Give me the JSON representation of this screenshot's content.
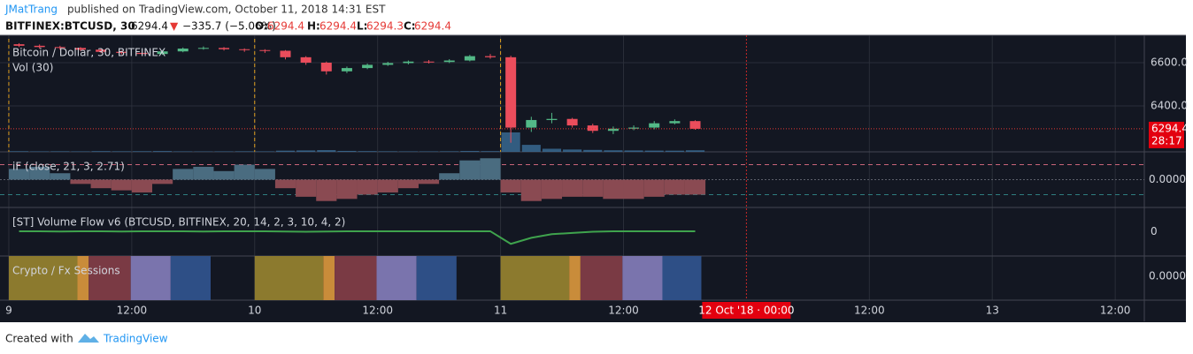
{
  "header": {
    "author": "JMatTrang",
    "published": "published on TradingView.com, October 11, 2018 14:31 EST",
    "symbol": "BITFINEX:BTCUSD, 30",
    "price": "6294.4",
    "arrow": "▼",
    "change": "−335.7 (−5.06%)",
    "o_label": "O:",
    "o": "6294.4",
    "h_label": "H:",
    "h": "6294.4",
    "l_label": "L:",
    "l": "6294.3",
    "c_label": "C:",
    "c": "6294.4"
  },
  "chart_data": {
    "type": "candlestick",
    "title": "Bitcoin / Dollar, 30, BITFINEX",
    "volume_title": "Vol (30)",
    "up_color": "#53b987",
    "down_color": "#eb4d5c",
    "volume_color": "#3b6e99",
    "x": [
      0,
      2,
      4,
      6,
      8,
      10,
      12,
      14,
      16,
      18,
      20,
      22,
      24,
      26,
      28,
      30,
      32,
      34,
      36,
      38,
      40,
      42,
      44,
      46,
      48,
      50,
      52,
      54,
      56,
      58,
      60,
      62,
      64,
      66
    ],
    "open": [
      6685,
      6678,
      6672,
      6668,
      6660,
      6650,
      6645,
      6640,
      6652,
      6665,
      6668,
      6662,
      6658,
      6655,
      6625,
      6600,
      6560,
      6575,
      6590,
      6598,
      6605,
      6603,
      6610,
      6630,
      6625,
      6300,
      6335,
      6340,
      6310,
      6285,
      6295,
      6300,
      6320,
      6330
    ],
    "high": [
      6690,
      6684,
      6678,
      6672,
      6664,
      6656,
      6650,
      6658,
      6670,
      6675,
      6672,
      6666,
      6662,
      6658,
      6630,
      6605,
      6582,
      6596,
      6604,
      6610,
      6612,
      6616,
      6636,
      6640,
      6632,
      6350,
      6368,
      6345,
      6318,
      6305,
      6310,
      6330,
      6338,
      6334
    ],
    "low": [
      6672,
      6665,
      6660,
      6654,
      6644,
      6638,
      6632,
      6636,
      6648,
      6660,
      6656,
      6650,
      6645,
      6615,
      6590,
      6545,
      6552,
      6570,
      6585,
      6592,
      6596,
      6598,
      6606,
      6618,
      6230,
      6280,
      6320,
      6300,
      6275,
      6270,
      6288,
      6292,
      6315,
      6290
    ],
    "close": [
      6678,
      6672,
      6668,
      6660,
      6650,
      6645,
      6640,
      6652,
      6665,
      6668,
      6662,
      6658,
      6655,
      6625,
      6600,
      6560,
      6575,
      6590,
      6598,
      6605,
      6603,
      6610,
      6630,
      6625,
      6300,
      6335,
      6340,
      6310,
      6285,
      6295,
      6300,
      6320,
      6330,
      6294.4
    ],
    "volume": [
      80,
      60,
      70,
      60,
      90,
      70,
      80,
      100,
      60,
      50,
      60,
      70,
      60,
      150,
      180,
      220,
      120,
      90,
      70,
      60,
      60,
      70,
      110,
      90,
      2500,
      900,
      400,
      300,
      250,
      200,
      180,
      160,
      150,
      200
    ],
    "xlim": [
      -0.86,
      110.84
    ],
    "ylim": [
      6188,
      6710
    ],
    "yticks": [
      {
        "value": 6400,
        "label": "6400.0"
      },
      {
        "value": 6600,
        "label": "6600.0"
      }
    ],
    "xticks": [
      {
        "value": 0,
        "label": "9"
      },
      {
        "value": 12,
        "label": "12:00"
      },
      {
        "value": 24,
        "label": "10"
      },
      {
        "value": 36,
        "label": "12:00"
      },
      {
        "value": 48,
        "label": "11"
      },
      {
        "value": 60,
        "label": "12:00"
      },
      {
        "value": 72,
        "label": "12 Oct '18 · 00:00"
      },
      {
        "value": 84,
        "label": "12:00"
      },
      {
        "value": 96,
        "label": "13"
      },
      {
        "value": 108,
        "label": "12:00"
      }
    ],
    "last_price": 6294.4,
    "countdown": "28:17",
    "session_breaks": [
      0,
      24,
      48
    ],
    "cursor_x": 72,
    "grid": true,
    "panes": [
      {
        "type": "histogram",
        "title": "iF (close, 21, 3, 2.71)",
        "ylim": [
          -1.3,
          1.3
        ],
        "levels": [
          0.7,
          -0.7
        ],
        "ytick": {
          "value": 0,
          "label": "0.0000"
        },
        "pos_color": "#4a6c80",
        "neg_color": "#8a4a52",
        "values": [
          0.5,
          0.6,
          0.3,
          -0.2,
          -0.4,
          -0.5,
          -0.6,
          -0.2,
          0.5,
          0.6,
          0.4,
          0.7,
          0.5,
          -0.4,
          -0.8,
          -1.0,
          -0.9,
          -0.7,
          -0.6,
          -0.4,
          -0.2,
          0.3,
          0.9,
          1.0,
          -0.6,
          -1.0,
          -0.9,
          -0.8,
          -0.8,
          -0.9,
          -0.9,
          -0.8,
          -0.7,
          -0.7
        ]
      },
      {
        "type": "line",
        "title": "[ST] Volume Flow v6 (BTCUSD, BITFINEX, 20, 14, 2, 3, 10, 4, 2)",
        "ylim": [
          -1,
          1
        ],
        "ytick": 0,
        "color": "#3fa34d",
        "values": [
          0.02,
          0.02,
          0.01,
          0.02,
          0.02,
          0.01,
          0.02,
          0.02,
          0.02,
          0.01,
          0.02,
          0.02,
          0.02,
          0.01,
          0.0,
          0.01,
          0.02,
          0.02,
          0.02,
          0.02,
          0.02,
          0.02,
          0.02,
          0.02,
          -0.5,
          -0.25,
          -0.1,
          -0.05,
          0.0,
          0.02,
          0.02,
          0.02,
          0.02,
          0.02
        ]
      },
      {
        "type": "sessions",
        "title": "Crypto / Fx Sessions",
        "ytick": {
          "value": 0,
          "label": "0.0000"
        },
        "sessions": [
          {
            "start": 0,
            "end": 6.7,
            "color": "#8c7a2e"
          },
          {
            "start": 6.7,
            "end": 7.8,
            "color": "#c98c3a"
          },
          {
            "start": 7.8,
            "end": 11.9,
            "color": "#7a3a44"
          },
          {
            "start": 11.9,
            "end": 15.8,
            "color": "#7a74ad"
          },
          {
            "start": 15.8,
            "end": 19.7,
            "color": "#2e4f86"
          },
          {
            "start": 24,
            "end": 30.7,
            "color": "#8c7a2e"
          },
          {
            "start": 30.7,
            "end": 31.8,
            "color": "#c98c3a"
          },
          {
            "start": 31.8,
            "end": 35.9,
            "color": "#7a3a44"
          },
          {
            "start": 35.9,
            "end": 39.8,
            "color": "#7a74ad"
          },
          {
            "start": 39.8,
            "end": 43.7,
            "color": "#2e4f86"
          },
          {
            "start": 48,
            "end": 54.7,
            "color": "#8c7a2e"
          },
          {
            "start": 54.7,
            "end": 55.8,
            "color": "#c98c3a"
          },
          {
            "start": 55.8,
            "end": 59.9,
            "color": "#7a3a44"
          },
          {
            "start": 59.9,
            "end": 63.8,
            "color": "#7a74ad"
          },
          {
            "start": 63.8,
            "end": 67.6,
            "color": "#2e4f86"
          }
        ]
      }
    ]
  },
  "footer": {
    "created": "Created with",
    "brand": "TradingView"
  }
}
